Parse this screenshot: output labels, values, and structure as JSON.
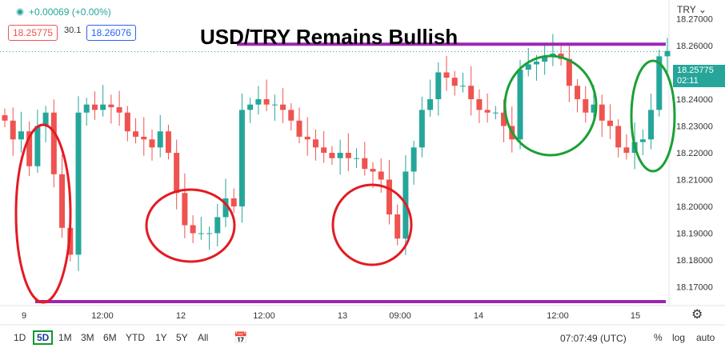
{
  "header": {
    "change": "+0.00069 (+0.00%)",
    "bid": "18.25775",
    "spread": "30.1",
    "ask": "18.26076"
  },
  "symbol_label": "TRY",
  "price_label": {
    "price": "18.25775",
    "countdown": "02:11"
  },
  "bottom_bar": {
    "ranges": [
      "1D",
      "5D",
      "1M",
      "3M",
      "6M",
      "YTD",
      "1Y",
      "5Y",
      "All"
    ],
    "active_range": "5D",
    "clock": "07:07:49 (UTC)",
    "percent": "%",
    "log": "log",
    "auto": "auto"
  },
  "colors": {
    "up": "#26a69a",
    "down": "#ef5350",
    "line": "#9c27b0",
    "red_circle": "#e31b23",
    "green_circle": "#1aa035"
  },
  "chart_data": {
    "type": "candlestick",
    "title": "USD/TRY Remains Bullish",
    "ylim": [
      18.163,
      18.277
    ],
    "y_ticks": [
      "18.27000",
      "18.26000",
      "18.25000",
      "18.24000",
      "18.23000",
      "18.22000",
      "18.21000",
      "18.20000",
      "18.19000",
      "18.18000",
      "18.17000"
    ],
    "x_ticks": [
      "9",
      "12:00",
      "12",
      "12:00",
      "13",
      "09:00",
      "14",
      "12:00",
      "15"
    ],
    "last_price": 18.25775,
    "resistance": 18.2605,
    "support": 18.1645,
    "series_close": [
      18.232,
      18.225,
      18.228,
      18.215,
      18.23,
      18.235,
      18.212,
      18.192,
      18.182,
      18.235,
      18.238,
      18.236,
      18.238,
      18.237,
      18.235,
      18.228,
      18.226,
      18.225,
      18.222,
      18.228,
      18.22,
      18.205,
      18.193,
      18.19,
      18.19,
      18.19,
      18.196,
      18.203,
      18.2,
      18.236,
      18.238,
      18.24,
      18.238,
      18.238,
      18.236,
      18.232,
      18.226,
      18.225,
      18.222,
      18.22,
      18.218,
      18.22,
      18.218,
      18.218,
      18.214,
      18.213,
      18.21,
      18.197,
      18.188,
      18.213,
      18.222,
      18.236,
      18.24,
      18.25,
      18.248,
      18.245,
      18.245,
      18.24,
      18.236,
      18.235,
      18.235,
      18.23,
      18.225,
      18.251,
      18.253,
      18.254,
      18.256,
      18.257,
      18.255,
      18.245,
      18.24,
      18.235,
      18.238,
      18.232,
      18.23,
      18.222,
      18.22,
      18.224,
      18.225,
      18.236,
      18.256,
      18.258
    ]
  }
}
